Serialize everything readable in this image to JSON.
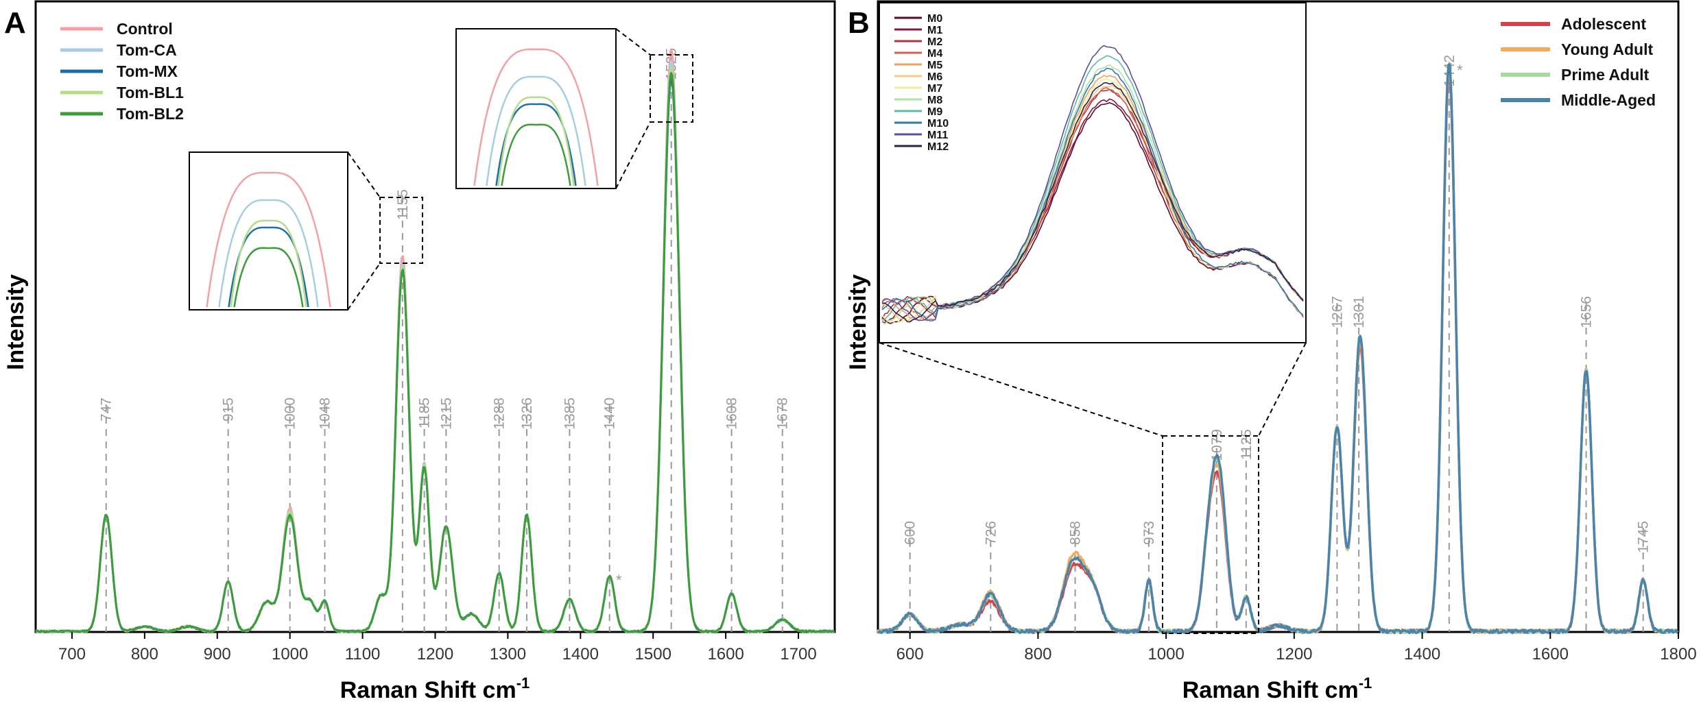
{
  "figure": {
    "panel_a_letter": "A",
    "panel_b_letter": "B"
  },
  "chart_data": [
    {
      "type": "line",
      "panel": "A",
      "title": "",
      "xlabel": "Raman Shift cm",
      "xlabel_superscript": "-1",
      "ylabel": "Intensity",
      "xlim": [
        650,
        1750
      ],
      "ylim": [
        0,
        1.0
      ],
      "x_ticks": [
        700,
        800,
        900,
        1000,
        1100,
        1200,
        1300,
        1400,
        1500,
        1600,
        1700
      ],
      "x_tick_labels": [
        "700",
        "800",
        "900",
        "1000",
        "1100",
        "1200",
        "1300",
        "1400",
        "1500",
        "1600",
        "1700"
      ],
      "legend_position": "top-left",
      "peaks": [
        {
          "x": 747,
          "label": "747"
        },
        {
          "x": 915,
          "label": "915"
        },
        {
          "x": 1000,
          "label": "1000"
        },
        {
          "x": 1048,
          "label": "1048"
        },
        {
          "x": 1155,
          "label": "1155"
        },
        {
          "x": 1185,
          "label": "1185"
        },
        {
          "x": 1215,
          "label": "1215"
        },
        {
          "x": 1288,
          "label": "1288"
        },
        {
          "x": 1326,
          "label": "1326"
        },
        {
          "x": 1385,
          "label": "1385"
        },
        {
          "x": 1440,
          "label": "1440"
        },
        {
          "x": 1525,
          "label": "1525"
        },
        {
          "x": 1608,
          "label": "1608"
        },
        {
          "x": 1678,
          "label": "1678"
        }
      ],
      "annotations": [
        {
          "x": 1452,
          "text": "*"
        }
      ],
      "components": [
        {
          "x": 747,
          "w": 8,
          "a": 0.2
        },
        {
          "x": 915,
          "w": 7,
          "a": 0.085
        },
        {
          "x": 968,
          "w": 10,
          "a": 0.05
        },
        {
          "x": 1000,
          "w": 10,
          "a": 0.2
        },
        {
          "x": 1028,
          "w": 8,
          "a": 0.05
        },
        {
          "x": 1048,
          "w": 6,
          "a": 0.05
        },
        {
          "x": 1125,
          "w": 8,
          "a": 0.06
        },
        {
          "x": 1155,
          "w": 9,
          "a": 0.62
        },
        {
          "x": 1185,
          "w": 7,
          "a": 0.28
        },
        {
          "x": 1215,
          "w": 9,
          "a": 0.18
        },
        {
          "x": 1250,
          "w": 10,
          "a": 0.03
        },
        {
          "x": 1288,
          "w": 7,
          "a": 0.1
        },
        {
          "x": 1326,
          "w": 7,
          "a": 0.2
        },
        {
          "x": 1385,
          "w": 8,
          "a": 0.055
        },
        {
          "x": 1440,
          "w": 7,
          "a": 0.095
        },
        {
          "x": 1525,
          "w": 11,
          "a": 0.96
        },
        {
          "x": 1608,
          "w": 7,
          "a": 0.065
        },
        {
          "x": 1678,
          "w": 10,
          "a": 0.02
        },
        {
          "x": 800,
          "w": 12,
          "a": 0.008
        },
        {
          "x": 860,
          "w": 12,
          "a": 0.008
        }
      ],
      "series": [
        {
          "name": "Control",
          "color": "#f4a0a4",
          "scale": {
            "1525": 1.04,
            "1155": 1.04,
            "1000": 1.06,
            "1185": 1.03
          }
        },
        {
          "name": "Tom-CA",
          "color": "#a8cce0",
          "scale": {
            "1525": 1.02,
            "1155": 1.02,
            "1000": 1.04,
            "1185": 1.02
          }
        },
        {
          "name": "Tom-MX",
          "color": "#1f6ea8",
          "scale": {
            "1525": 0.99,
            "1155": 1.005,
            "1000": 1.0,
            "1185": 1.0
          }
        },
        {
          "name": "Tom-BL1",
          "color": "#b6dc8a",
          "scale": {
            "1525": 1.01,
            "1155": 1.01,
            "1000": 1.02,
            "1185": 1.01
          }
        },
        {
          "name": "Tom-BL2",
          "color": "#3a9d3a",
          "scale": {
            "1525": 1.0,
            "1155": 1.0,
            "1000": 1.0,
            "1185": 1.0
          }
        }
      ]
    },
    {
      "type": "line",
      "panel": "B",
      "title": "",
      "xlabel": "Raman Shift cm",
      "xlabel_superscript": "-1",
      "ylabel": "Intensity",
      "xlim": [
        550,
        1800
      ],
      "ylim": [
        0,
        1.0
      ],
      "x_ticks": [
        600,
        800,
        1000,
        1200,
        1400,
        1600,
        1800
      ],
      "x_tick_labels": [
        "600",
        "800",
        "1000",
        "1200",
        "1400",
        "1600",
        "1800"
      ],
      "legend_position": "top-right",
      "peaks": [
        {
          "x": 600,
          "label": "600"
        },
        {
          "x": 726,
          "label": "726"
        },
        {
          "x": 858,
          "label": "858"
        },
        {
          "x": 973,
          "label": "973"
        },
        {
          "x": 1079,
          "label": "1079"
        },
        {
          "x": 1125,
          "label": "1125"
        },
        {
          "x": 1267,
          "label": "1267"
        },
        {
          "x": 1301,
          "label": "1301"
        },
        {
          "x": 1442,
          "label": "1442"
        },
        {
          "x": 1656,
          "label": "1656"
        },
        {
          "x": 1745,
          "label": "1745"
        }
      ],
      "annotations": [
        {
          "x": 1456,
          "text": "*"
        }
      ],
      "components": [
        {
          "x": 600,
          "w": 12,
          "a": 0.03
        },
        {
          "x": 726,
          "w": 14,
          "a": 0.065
        },
        {
          "x": 855,
          "w": 16,
          "a": 0.12
        },
        {
          "x": 885,
          "w": 14,
          "a": 0.07
        },
        {
          "x": 973,
          "w": 6,
          "a": 0.09
        },
        {
          "x": 1065,
          "w": 10,
          "a": 0.1
        },
        {
          "x": 1082,
          "w": 12,
          "a": 0.28
        },
        {
          "x": 1125,
          "w": 7,
          "a": 0.06
        },
        {
          "x": 1267,
          "w": 9,
          "a": 0.36
        },
        {
          "x": 1303,
          "w": 10,
          "a": 0.52
        },
        {
          "x": 1442,
          "w": 10,
          "a": 1.0
        },
        {
          "x": 1656,
          "w": 9,
          "a": 0.46
        },
        {
          "x": 1745,
          "w": 7,
          "a": 0.09
        },
        {
          "x": 680,
          "w": 18,
          "a": 0.012
        },
        {
          "x": 1175,
          "w": 14,
          "a": 0.01
        }
      ],
      "series": [
        {
          "name": "Adolescent",
          "color": "#d6404a",
          "scale": {
            "1082": 0.9,
            "1442": 0.98,
            "726": 0.8,
            "855": 0.92,
            "1303": 0.97
          }
        },
        {
          "name": "Young Adult",
          "color": "#f0ac5c",
          "scale": {
            "1082": 0.95,
            "1442": 0.99,
            "726": 1.05,
            "855": 1.08,
            "1303": 0.98
          }
        },
        {
          "name": "Prime Adult",
          "color": "#a6d9a0",
          "scale": {
            "1082": 0.98,
            "1442": 1.0,
            "726": 0.95,
            "855": 1.0,
            "1303": 1.0
          }
        },
        {
          "name": "Middle-Aged",
          "color": "#4a84ad",
          "scale": {
            "1082": 1.0,
            "1442": 1.0,
            "726": 1.0,
            "855": 1.0,
            "1303": 1.0
          }
        }
      ],
      "inset": {
        "xlim": [
          995,
          1145
        ],
        "series": [
          {
            "name": "M0",
            "color": "#5a0a2a",
            "scale": 0.8
          },
          {
            "name": "M1",
            "color": "#8c1434",
            "scale": 0.78
          },
          {
            "name": "M2",
            "color": "#b8303c",
            "scale": 0.82
          },
          {
            "name": "M4",
            "color": "#d8604a",
            "scale": 0.86
          },
          {
            "name": "M5",
            "color": "#f0a060",
            "scale": 0.88
          },
          {
            "name": "M6",
            "color": "#f6cc80",
            "scale": 0.84
          },
          {
            "name": "M7",
            "color": "#f2ee98",
            "scale": 0.9
          },
          {
            "name": "M8",
            "color": "#b6e0a0",
            "scale": 0.92
          },
          {
            "name": "M9",
            "color": "#60b8a4",
            "scale": 0.96
          },
          {
            "name": "M10",
            "color": "#2c78b0",
            "scale": 0.94
          },
          {
            "name": "M11",
            "color": "#5a4c9c",
            "scale": 1.0
          },
          {
            "name": "M12",
            "color": "#2c2050",
            "scale": 0.85
          }
        ]
      }
    }
  ]
}
